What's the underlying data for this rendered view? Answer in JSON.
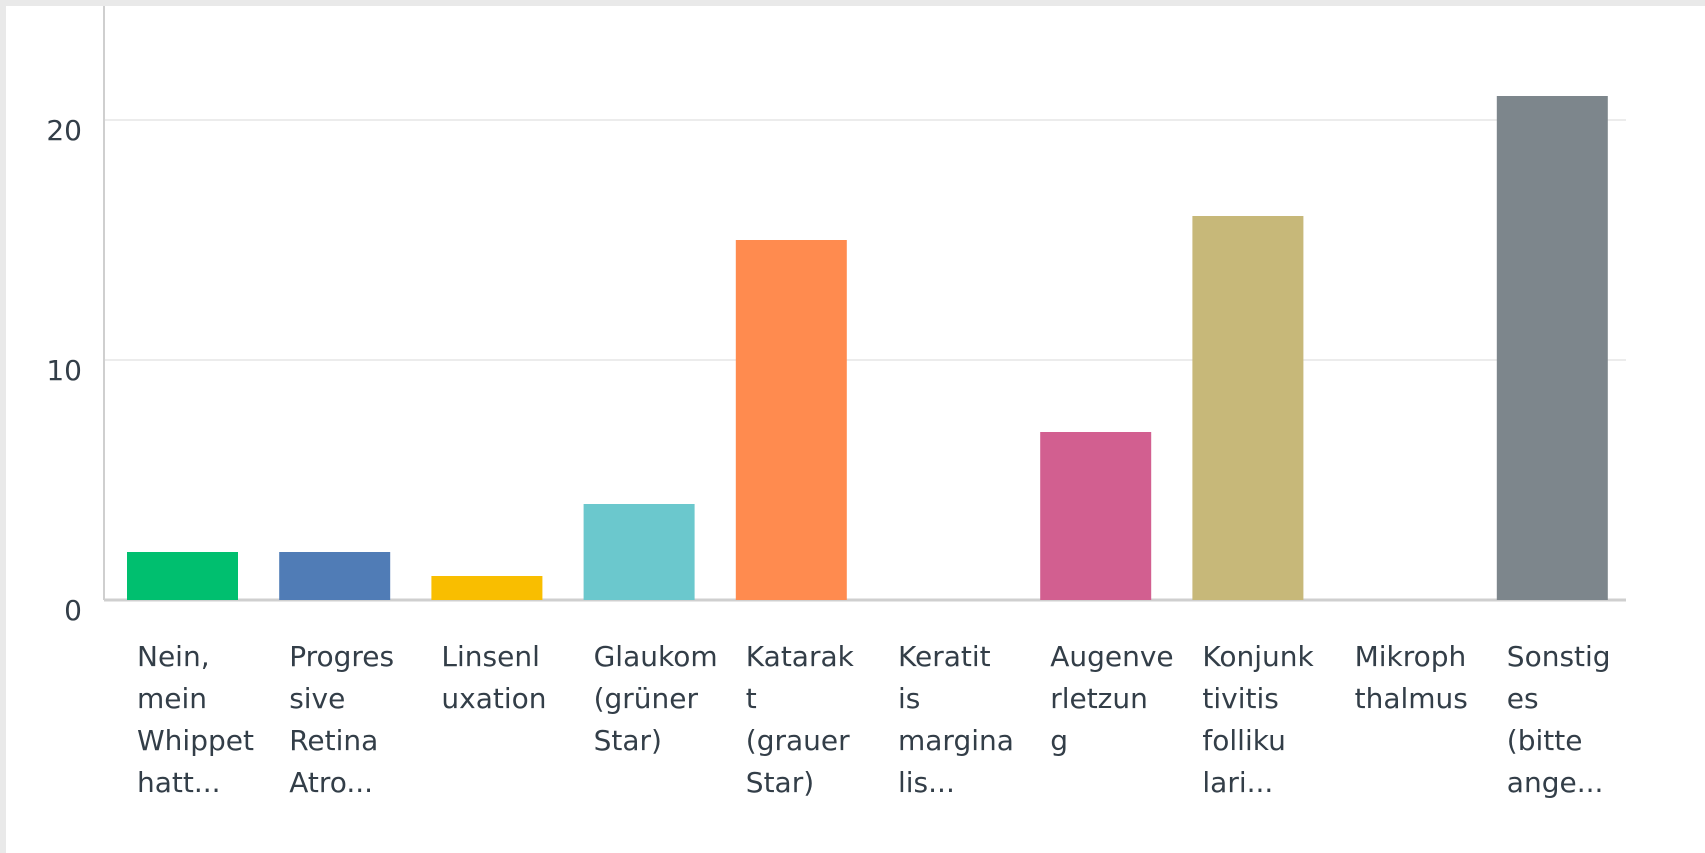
{
  "chart_data": {
    "type": "bar",
    "categories": [
      [
        "Nein,",
        "mein",
        "Whippet",
        "hatt..."
      ],
      [
        "Progres",
        "sive",
        "Retina",
        "Atro..."
      ],
      [
        "Linsenl",
        "uxation"
      ],
      [
        "Glaukom",
        "(grüner",
        "Star)"
      ],
      [
        "Katarak",
        "t",
        "(grauer",
        "Star)"
      ],
      [
        "Keratit",
        "is",
        "margina",
        "lis..."
      ],
      [
        "Augenve",
        "rletzun",
        "g"
      ],
      [
        "Konjunk",
        "tivitis",
        "folliku",
        "lari..."
      ],
      [
        "Mikroph",
        "thalmus"
      ],
      [
        "Sonstig",
        "es",
        "(bitte",
        "ange..."
      ]
    ],
    "values": [
      2,
      2,
      1,
      4,
      15,
      0,
      7,
      16,
      0,
      21
    ],
    "colors": [
      "#00bf6f",
      "#507cb6",
      "#f9be00",
      "#6bc8cd",
      "#ff8b4f",
      null,
      "#d25f90",
      "#c7b879",
      null,
      "#7d868c"
    ],
    "ylim": [
      0,
      25
    ],
    "yticks": [
      0,
      10,
      20
    ],
    "grid": true
  }
}
